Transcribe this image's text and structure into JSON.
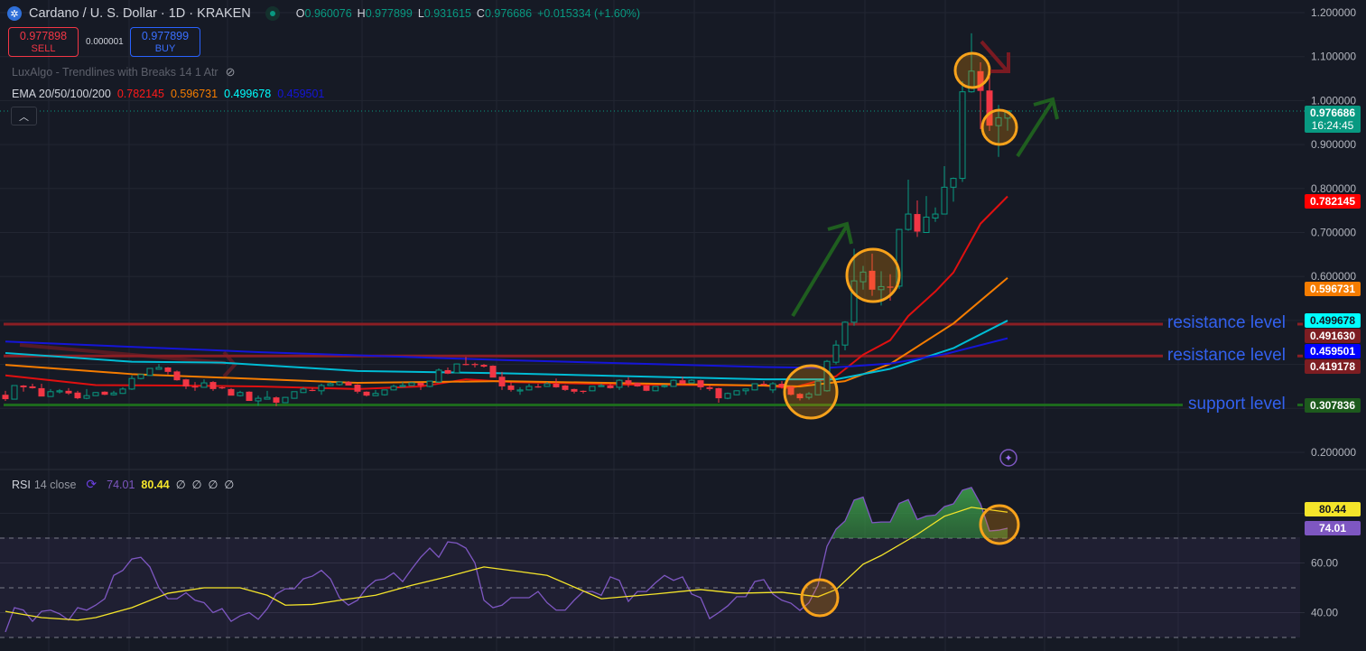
{
  "header": {
    "title": "Cardano / U. S. Dollar · 1D · KRAKEN",
    "logo_icon": "cardano-logo",
    "ohlc": {
      "o_label": "O",
      "o": "0.960076",
      "h_label": "H",
      "h": "0.977899",
      "l_label": "L",
      "l": "0.931615",
      "c_label": "C",
      "c": "0.976686",
      "change": "+0.015334 (+1.60%)"
    },
    "sell": {
      "price": "0.977898",
      "label": "SELL"
    },
    "buy": {
      "price": "0.977899",
      "label": "BUY"
    },
    "spread": "0.000001",
    "indicator_luxalgo": "LuxAlgo - Trendlines with Breaks 14 1 Atr",
    "ema_label": "EMA 20/50/100/200",
    "ema_values": [
      "0.782145",
      "0.596731",
      "0.499678",
      "0.459501"
    ],
    "collapse_icon": "chevron-up"
  },
  "colors": {
    "bull": "#089981",
    "bear": "#f23645",
    "ema20": "#e01010",
    "ema50": "#f57c00",
    "ema100": "#00bcd4",
    "ema200": "#1515d8",
    "resistance": "#8b1e24",
    "support": "#1d6a1d",
    "annotation_text": "#3361ee",
    "rsi": "#7e57c2",
    "rsi_ma": "#f5e52a"
  },
  "price_axis": {
    "ticks": [
      "1.200000",
      "1.100000",
      "1.000000",
      "0.900000",
      "0.800000",
      "0.700000",
      "0.600000",
      "0.200000"
    ],
    "tags": [
      {
        "value": "0.976686",
        "sub": "16:24:45",
        "bg": "#089981",
        "fg": "#ffffff"
      },
      {
        "value": "0.782145",
        "bg": "#ff0000",
        "fg": "#ffffff"
      },
      {
        "value": "0.596731",
        "bg": "#f57c00",
        "fg": "#ffffff"
      },
      {
        "value": "0.499678",
        "bg": "#00ffff",
        "fg": "#131722"
      },
      {
        "value": "0.491630",
        "bg": "#7d1d22",
        "fg": "#ffffff"
      },
      {
        "value": "0.459501",
        "bg": "#0000ff",
        "fg": "#ffffff"
      },
      {
        "value": "0.419178",
        "bg": "#7d1d22",
        "fg": "#ffffff"
      },
      {
        "value": "0.307836",
        "bg": "#1d5a1d",
        "fg": "#ffffff"
      }
    ]
  },
  "levels": [
    {
      "label": "resistance level",
      "price": 0.49163
    },
    {
      "label": "resistance level",
      "price": 0.419178
    },
    {
      "label": "support level",
      "price": 0.307836
    }
  ],
  "chart_data": [
    {
      "type": "candlestick",
      "symbol": "ADA/USD",
      "ylim": [
        0.18,
        1.22
      ],
      "ohlc": [
        [
          0.331,
          0.34,
          0.317,
          0.321
        ],
        [
          0.321,
          0.352,
          0.32,
          0.352
        ],
        [
          0.352,
          0.353,
          0.338,
          0.348
        ],
        [
          0.35,
          0.356,
          0.345,
          0.346
        ],
        [
          0.346,
          0.356,
          0.327,
          0.327
        ],
        [
          0.327,
          0.344,
          0.326,
          0.338
        ],
        [
          0.338,
          0.344,
          0.334,
          0.34
        ],
        [
          0.34,
          0.346,
          0.331,
          0.334
        ],
        [
          0.336,
          0.34,
          0.321,
          0.323
        ],
        [
          0.323,
          0.344,
          0.321,
          0.329
        ],
        [
          0.329,
          0.337,
          0.328,
          0.336
        ],
        [
          0.338,
          0.339,
          0.33,
          0.331
        ],
        [
          0.331,
          0.34,
          0.329,
          0.335
        ],
        [
          0.334,
          0.348,
          0.333,
          0.344
        ],
        [
          0.344,
          0.375,
          0.342,
          0.368
        ],
        [
          0.368,
          0.377,
          0.366,
          0.377
        ],
        [
          0.375,
          0.391,
          0.374,
          0.391
        ],
        [
          0.389,
          0.401,
          0.388,
          0.393
        ],
        [
          0.393,
          0.394,
          0.377,
          0.383
        ],
        [
          0.384,
          0.386,
          0.363,
          0.364
        ],
        [
          0.366,
          0.367,
          0.344,
          0.35
        ],
        [
          0.35,
          0.36,
          0.34,
          0.348
        ],
        [
          0.348,
          0.366,
          0.347,
          0.358
        ],
        [
          0.36,
          0.362,
          0.34,
          0.344
        ],
        [
          0.348,
          0.35,
          0.344,
          0.346
        ],
        [
          0.344,
          0.346,
          0.329,
          0.329
        ],
        [
          0.329,
          0.34,
          0.327,
          0.336
        ],
        [
          0.338,
          0.339,
          0.317,
          0.317
        ],
        [
          0.317,
          0.329,
          0.306,
          0.323
        ],
        [
          0.321,
          0.34,
          0.32,
          0.325
        ],
        [
          0.325,
          0.327,
          0.305,
          0.313
        ],
        [
          0.313,
          0.326,
          0.312,
          0.325
        ],
        [
          0.323,
          0.338,
          0.322,
          0.338
        ],
        [
          0.336,
          0.348,
          0.335,
          0.344
        ],
        [
          0.342,
          0.346,
          0.339,
          0.34
        ],
        [
          0.34,
          0.356,
          0.331,
          0.352
        ],
        [
          0.352,
          0.36,
          0.351,
          0.356
        ],
        [
          0.354,
          0.362,
          0.352,
          0.36
        ],
        [
          0.36,
          0.362,
          0.352,
          0.352
        ],
        [
          0.354,
          0.355,
          0.334,
          0.338
        ],
        [
          0.338,
          0.339,
          0.327,
          0.329
        ],
        [
          0.329,
          0.342,
          0.328,
          0.334
        ],
        [
          0.331,
          0.342,
          0.329,
          0.342
        ],
        [
          0.342,
          0.354,
          0.341,
          0.35
        ],
        [
          0.35,
          0.36,
          0.349,
          0.352
        ],
        [
          0.352,
          0.36,
          0.351,
          0.358
        ],
        [
          0.358,
          0.359,
          0.342,
          0.352
        ],
        [
          0.35,
          0.363,
          0.348,
          0.362
        ],
        [
          0.36,
          0.391,
          0.358,
          0.387
        ],
        [
          0.387,
          0.393,
          0.378,
          0.379
        ],
        [
          0.381,
          0.402,
          0.38,
          0.401
        ],
        [
          0.401,
          0.417,
          0.398,
          0.399
        ],
        [
          0.401,
          0.404,
          0.393,
          0.399
        ],
        [
          0.399,
          0.401,
          0.393,
          0.395
        ],
        [
          0.397,
          0.398,
          0.37,
          0.37
        ],
        [
          0.372,
          0.383,
          0.342,
          0.35
        ],
        [
          0.352,
          0.36,
          0.338,
          0.342
        ],
        [
          0.34,
          0.348,
          0.331,
          0.342
        ],
        [
          0.342,
          0.356,
          0.341,
          0.35
        ],
        [
          0.35,
          0.356,
          0.347,
          0.348
        ],
        [
          0.35,
          0.36,
          0.349,
          0.356
        ],
        [
          0.356,
          0.368,
          0.347,
          0.348
        ],
        [
          0.352,
          0.353,
          0.34,
          0.342
        ],
        [
          0.344,
          0.345,
          0.334,
          0.338
        ],
        [
          0.34,
          0.341,
          0.334,
          0.338
        ],
        [
          0.34,
          0.351,
          0.339,
          0.35
        ],
        [
          0.35,
          0.356,
          0.349,
          0.352
        ],
        [
          0.352,
          0.356,
          0.345,
          0.346
        ],
        [
          0.348,
          0.366,
          0.342,
          0.364
        ],
        [
          0.364,
          0.371,
          0.348,
          0.356
        ],
        [
          0.358,
          0.359,
          0.349,
          0.35
        ],
        [
          0.352,
          0.353,
          0.339,
          0.34
        ],
        [
          0.34,
          0.351,
          0.339,
          0.35
        ],
        [
          0.35,
          0.354,
          0.347,
          0.352
        ],
        [
          0.35,
          0.366,
          0.349,
          0.364
        ],
        [
          0.364,
          0.372,
          0.355,
          0.356
        ],
        [
          0.358,
          0.366,
          0.357,
          0.364
        ],
        [
          0.364,
          0.365,
          0.342,
          0.348
        ],
        [
          0.348,
          0.352,
          0.34,
          0.344
        ],
        [
          0.346,
          0.347,
          0.313,
          0.323
        ],
        [
          0.323,
          0.336,
          0.321,
          0.334
        ],
        [
          0.331,
          0.341,
          0.33,
          0.34
        ],
        [
          0.34,
          0.345,
          0.331,
          0.344
        ],
        [
          0.342,
          0.357,
          0.341,
          0.356
        ],
        [
          0.356,
          0.362,
          0.352,
          0.354
        ],
        [
          0.342,
          0.36,
          0.335,
          0.356
        ],
        [
          0.356,
          0.362,
          0.345,
          0.348
        ],
        [
          0.35,
          0.352,
          0.329,
          0.331
        ],
        [
          0.333,
          0.335,
          0.318,
          0.323
        ],
        [
          0.325,
          0.337,
          0.32,
          0.333
        ],
        [
          0.331,
          0.365,
          0.33,
          0.362
        ],
        [
          0.34,
          0.41,
          0.338,
          0.407
        ],
        [
          0.405,
          0.455,
          0.4,
          0.444
        ],
        [
          0.444,
          0.498,
          0.432,
          0.496
        ],
        [
          0.496,
          0.663,
          0.488,
          0.59
        ],
        [
          0.588,
          0.624,
          0.57,
          0.61
        ],
        [
          0.613,
          0.652,
          0.556,
          0.57
        ],
        [
          0.57,
          0.612,
          0.534,
          0.577
        ],
        [
          0.577,
          0.605,
          0.545,
          0.576
        ],
        [
          0.578,
          0.708,
          0.572,
          0.707
        ],
        [
          0.707,
          0.82,
          0.704,
          0.742
        ],
        [
          0.742,
          0.773,
          0.69,
          0.702
        ],
        [
          0.7,
          0.783,
          0.699,
          0.735
        ],
        [
          0.733,
          0.757,
          0.724,
          0.742
        ],
        [
          0.742,
          0.851,
          0.741,
          0.803
        ],
        [
          0.803,
          0.825,
          0.77,
          0.823
        ],
        [
          0.823,
          1.044,
          0.815,
          1.02
        ],
        [
          1.02,
          1.153,
          1.018,
          1.067
        ],
        [
          1.067,
          1.087,
          0.935,
          1.022
        ],
        [
          1.023,
          1.077,
          0.931,
          0.943
        ],
        [
          0.943,
          0.99,
          0.872,
          0.961
        ],
        [
          0.960076,
          0.977899,
          0.931615,
          0.976686
        ]
      ],
      "ema": [
        {
          "name": "EMA 20",
          "points": [
            [
              0,
              0.375
            ],
            [
              10,
              0.353
            ],
            [
              19,
              0.352
            ],
            [
              28,
              0.35
            ],
            [
              39,
              0.344
            ],
            [
              46,
              0.35
            ],
            [
              51,
              0.366
            ],
            [
              56,
              0.36
            ],
            [
              69,
              0.354
            ],
            [
              84,
              0.352
            ],
            [
              87,
              0.346
            ],
            [
              92,
              0.373
            ],
            [
              95,
              0.422
            ],
            [
              98,
              0.455
            ],
            [
              100,
              0.51
            ],
            [
              103,
              0.566
            ],
            [
              105,
              0.609
            ],
            [
              108,
              0.72
            ],
            [
              111,
              0.782145
            ]
          ]
        },
        {
          "name": "EMA 50",
          "points": [
            [
              0,
              0.399
            ],
            [
              14,
              0.378
            ],
            [
              24,
              0.37
            ],
            [
              39,
              0.358
            ],
            [
              55,
              0.362
            ],
            [
              84,
              0.352
            ],
            [
              88,
              0.35
            ],
            [
              93,
              0.362
            ],
            [
              98,
              0.401
            ],
            [
              105,
              0.493
            ],
            [
              111,
              0.596731
            ]
          ]
        },
        {
          "name": "EMA 100",
          "points": [
            [
              0,
              0.426
            ],
            [
              14,
              0.406
            ],
            [
              24,
              0.404
            ],
            [
              39,
              0.385
            ],
            [
              55,
              0.38
            ],
            [
              84,
              0.366
            ],
            [
              92,
              0.366
            ],
            [
              98,
              0.39
            ],
            [
              105,
              0.437
            ],
            [
              111,
              0.499678
            ]
          ]
        },
        {
          "name": "EMA 200",
          "points": [
            [
              0,
              0.452
            ],
            [
              28,
              0.428
            ],
            [
              55,
              0.41
            ],
            [
              84,
              0.394
            ],
            [
              91,
              0.392
            ],
            [
              98,
              0.402
            ],
            [
              104,
              0.423
            ],
            [
              111,
              0.459501
            ]
          ]
        }
      ]
    },
    {
      "type": "line",
      "title": "RSI 14 close",
      "ylim": [
        25,
        95
      ],
      "ticks": [
        "60.00",
        "40.00"
      ],
      "bands": [
        70,
        50,
        30
      ],
      "rsi": [
        32.2,
        42,
        41,
        36.5,
        40.5,
        41,
        39.5,
        37,
        42,
        41,
        43,
        45.6,
        55,
        57,
        61.6,
        62.3,
        58.4,
        50,
        45.6,
        45.6,
        48,
        45,
        44,
        40,
        41.6,
        36.5,
        38.7,
        40,
        37.3,
        41.6,
        47.5,
        49.6,
        49.6,
        53.6,
        54.7,
        57,
        53.6,
        46,
        43,
        45,
        50,
        53,
        53.6,
        56,
        52.5,
        57.6,
        62.3,
        66,
        62.3,
        68.5,
        68,
        66,
        60,
        45,
        42,
        43,
        46,
        46,
        46,
        48.5,
        44,
        41,
        41,
        45,
        48.5,
        48.5,
        47,
        54.4,
        53,
        44.5,
        48.5,
        48.5,
        52,
        55,
        53,
        54.4,
        47.5,
        46,
        37.6,
        40,
        42.7,
        46.4,
        46.4,
        52.5,
        53.3,
        47.5,
        45,
        43.8,
        40.9,
        44,
        51,
        66.7,
        73.6,
        76.9,
        85.3,
        86.5,
        76.2,
        76.5,
        76.5,
        84,
        85.5,
        77.5,
        78.9,
        79.3,
        82.7,
        83.8,
        89.3,
        90.4,
        83.8,
        72.9,
        73.2,
        74.01
      ],
      "rsi_ma": [
        [
          0,
          40.5
        ],
        [
          4,
          38
        ],
        [
          8,
          37
        ],
        [
          10,
          38
        ],
        [
          14,
          42
        ],
        [
          18,
          47.8
        ],
        [
          22,
          50
        ],
        [
          26,
          50
        ],
        [
          29,
          47
        ],
        [
          31,
          43
        ],
        [
          34,
          43.3
        ],
        [
          38,
          45.5
        ],
        [
          41,
          47
        ],
        [
          45,
          51
        ],
        [
          49,
          54.5
        ],
        [
          53,
          58.4
        ],
        [
          57,
          56.5
        ],
        [
          60,
          55
        ],
        [
          66,
          45.6
        ],
        [
          72,
          47.5
        ],
        [
          77,
          49.3
        ],
        [
          81,
          47.8
        ],
        [
          86,
          48.2
        ],
        [
          90,
          46.4
        ],
        [
          92,
          49.3
        ],
        [
          95,
          59.5
        ],
        [
          97,
          63
        ],
        [
          101,
          71.5
        ],
        [
          104,
          78.8
        ],
        [
          107,
          82.4
        ],
        [
          111,
          80.44
        ]
      ],
      "legend": {
        "label": "RSI",
        "params": "14 close",
        "rsi_value": "74.01",
        "ma_value": "80.44",
        "extras": [
          "∅",
          "∅",
          "∅",
          "∅"
        ]
      },
      "tags": [
        {
          "value": "80.44",
          "bg": "#f5e52a",
          "fg": "#131722"
        },
        {
          "value": "74.01",
          "bg": "#7e57c2",
          "fg": "#ffffff"
        }
      ]
    }
  ]
}
